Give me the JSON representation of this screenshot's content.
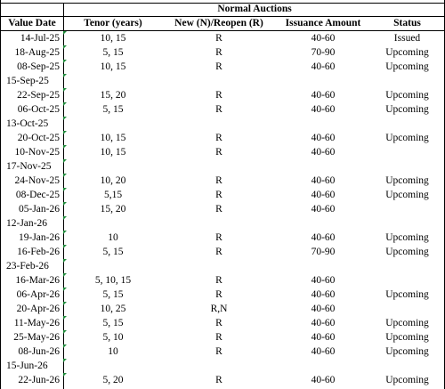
{
  "table": {
    "group_header": "Normal Auctions",
    "columns": {
      "date": "Value Date",
      "tenor": "Tenor (years)",
      "type": "New (N)/Reopen (R)",
      "amount": "Issuance Amount",
      "status": "Status"
    },
    "rows": [
      {
        "date": "14-Jul-25",
        "tenor": "10, 15",
        "type": "R",
        "amount": "40-60",
        "status": "Issued"
      },
      {
        "date": "18-Aug-25",
        "tenor": "5, 15",
        "type": "R",
        "amount": "70-90",
        "status": "Upcoming"
      },
      {
        "date": "08-Sep-25",
        "tenor": "10, 15",
        "type": "R",
        "amount": "40-60",
        "status": "Upcoming"
      },
      {
        "date": "15-Sep-25",
        "tenor": "",
        "type": "",
        "amount": "",
        "status": ""
      },
      {
        "date": "22-Sep-25",
        "tenor": "15, 20",
        "type": "R",
        "amount": "40-60",
        "status": "Upcoming"
      },
      {
        "date": "06-Oct-25",
        "tenor": "5, 15",
        "type": "R",
        "amount": "40-60",
        "status": "Upcoming"
      },
      {
        "date": "13-Oct-25",
        "tenor": "",
        "type": "",
        "amount": "",
        "status": ""
      },
      {
        "date": "20-Oct-25",
        "tenor": "10, 15",
        "type": "R",
        "amount": "40-60",
        "status": "Upcoming"
      },
      {
        "date": "10-Nov-25",
        "tenor": "10, 15",
        "type": "R",
        "amount": "40-60",
        "status": ""
      },
      {
        "date": "17-Nov-25",
        "tenor": "",
        "type": "",
        "amount": "",
        "status": ""
      },
      {
        "date": "24-Nov-25",
        "tenor": "10, 20",
        "type": "R",
        "amount": "40-60",
        "status": "Upcoming"
      },
      {
        "date": "08-Dec-25",
        "tenor": "5,15",
        "type": "R",
        "amount": "40-60",
        "status": "Upcoming"
      },
      {
        "date": "05-Jan-26",
        "tenor": "15, 20",
        "type": "R",
        "amount": "40-60",
        "status": ""
      },
      {
        "date": "12-Jan-26",
        "tenor": "",
        "type": "",
        "amount": "",
        "status": ""
      },
      {
        "date": "19-Jan-26",
        "tenor": "10",
        "type": "R",
        "amount": "40-60",
        "status": "Upcoming"
      },
      {
        "date": "16-Feb-26",
        "tenor": "5, 15",
        "type": "R",
        "amount": "70-90",
        "status": "Upcoming"
      },
      {
        "date": "23-Feb-26",
        "tenor": "",
        "type": "",
        "amount": "",
        "status": ""
      },
      {
        "date": "16-Mar-26",
        "tenor": "5, 10, 15",
        "type": "R",
        "amount": "40-60",
        "status": ""
      },
      {
        "date": "06-Apr-26",
        "tenor": "5, 15",
        "type": "R",
        "amount": "40-60",
        "status": "Upcoming"
      },
      {
        "date": "20-Apr-26",
        "tenor": "10, 25",
        "type": "R,N",
        "amount": "40-60",
        "status": ""
      },
      {
        "date": "11-May-26",
        "tenor": "5, 15",
        "type": "R",
        "amount": "40-60",
        "status": "Upcoming"
      },
      {
        "date": "25-May-26",
        "tenor": "5, 10",
        "type": "R",
        "amount": "40-60",
        "status": "Upcoming"
      },
      {
        "date": "08-Jun-26",
        "tenor": "10",
        "type": "R",
        "amount": "40-60",
        "status": "Upcoming"
      },
      {
        "date": "15-Jun-26",
        "tenor": "",
        "type": "",
        "amount": "",
        "status": ""
      },
      {
        "date": "22-Jun-26",
        "tenor": "5, 20",
        "type": "R",
        "amount": "40-60",
        "status": "Upcoming"
      }
    ]
  }
}
